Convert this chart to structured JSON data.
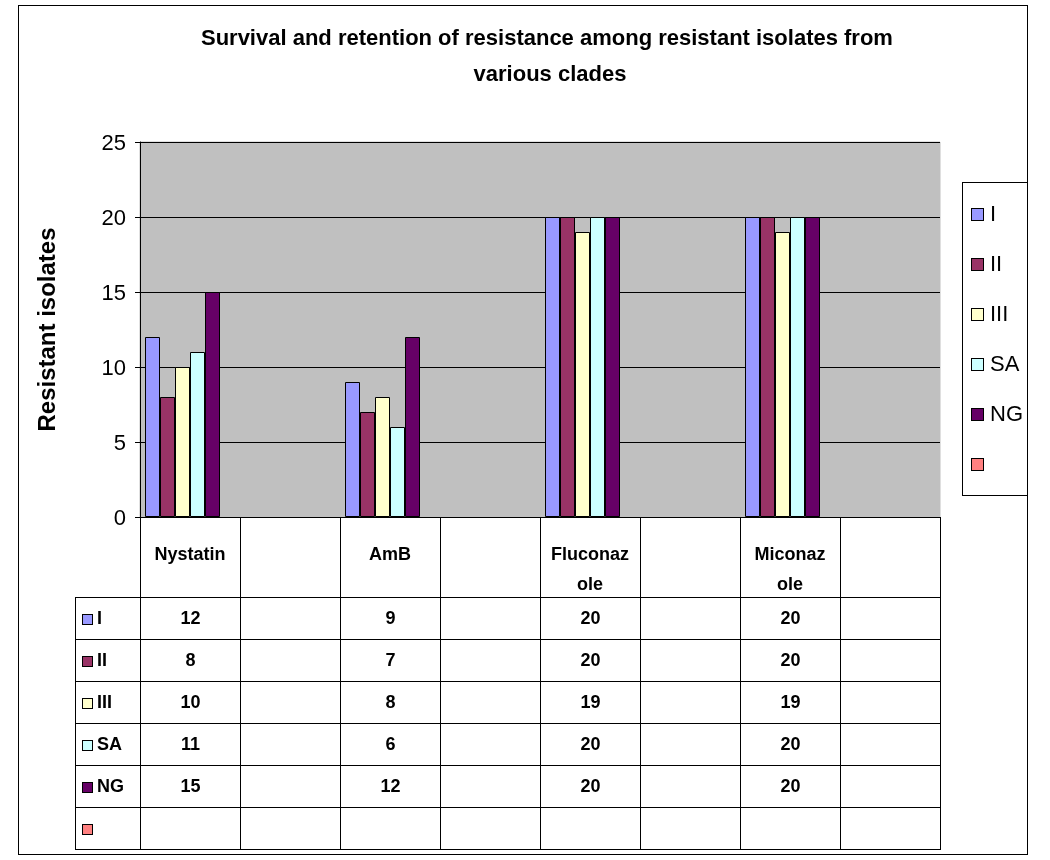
{
  "chart_data": {
    "type": "bar",
    "title": "Survival and retention of resistance among resistant isolates from various clades",
    "ylabel": "Resistant isolates",
    "categories": [
      "Nystatin",
      null,
      "AmB",
      null,
      "Fluconazole",
      null,
      "Miconazole",
      null
    ],
    "series": [
      {
        "name": "I",
        "color": "#9999ff",
        "values": [
          12,
          null,
          9,
          null,
          20,
          null,
          20,
          null
        ]
      },
      {
        "name": "II",
        "color": "#993366",
        "values": [
          8,
          null,
          7,
          null,
          20,
          null,
          20,
          null
        ]
      },
      {
        "name": "III",
        "color": "#ffffcc",
        "values": [
          10,
          null,
          8,
          null,
          19,
          null,
          19,
          null
        ]
      },
      {
        "name": "SA",
        "color": "#ccffff",
        "values": [
          11,
          null,
          6,
          null,
          20,
          null,
          20,
          null
        ]
      },
      {
        "name": "NG",
        "color": "#660066",
        "values": [
          15,
          null,
          12,
          null,
          20,
          null,
          20,
          null
        ]
      },
      {
        "color": "#ff8080",
        "values": [
          null,
          null,
          null,
          null,
          null,
          null,
          null,
          null
        ]
      }
    ],
    "ylim": [
      0,
      25
    ],
    "yticks": [
      0,
      5,
      10,
      15,
      20,
      25
    ],
    "grid": "y",
    "legend": "right",
    "data_labels": true
  }
}
